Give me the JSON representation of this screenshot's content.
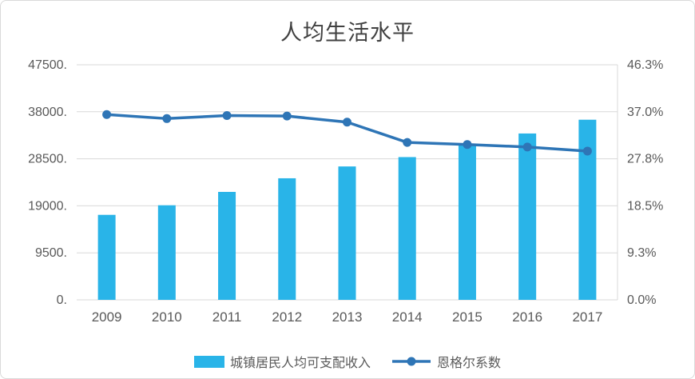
{
  "chart_data": {
    "type": "bar",
    "subtype": "bar+line-combo",
    "title": "人均生活水平",
    "categories": [
      "2009",
      "2010",
      "2011",
      "2012",
      "2013",
      "2014",
      "2015",
      "2016",
      "2017"
    ],
    "series": [
      {
        "name": "城镇居民人均可支配收入",
        "type": "bar",
        "axis": "left",
        "color": "#29b4e8",
        "values": [
          17175,
          19109,
          21810,
          24565,
          26955,
          28844,
          31195,
          33616,
          36396
        ]
      },
      {
        "name": "恩格尔系数",
        "type": "line",
        "axis": "right",
        "color": "#2e75b6",
        "values": [
          36.5,
          35.7,
          36.3,
          36.2,
          35.0,
          31.0,
          30.6,
          30.1,
          29.3
        ]
      }
    ],
    "left_axis": {
      "max": 47500,
      "ticks": [
        0,
        9500,
        19000,
        28500,
        38000,
        47500
      ],
      "labels": [
        "0.",
        "9500.",
        "19000.",
        "28500.",
        "38000.",
        "47500."
      ]
    },
    "right_axis": {
      "max": 46.3,
      "ticks": [
        0,
        9.3,
        18.5,
        27.8,
        37.0,
        46.3
      ],
      "labels": [
        "0.0%",
        "9.3%",
        "18.5%",
        "27.8%",
        "37.0%",
        "46.3%"
      ]
    },
    "grid": true,
    "legend_position": "bottom",
    "colors": {
      "gridline": "#d9d9d9",
      "axis_text": "#595959",
      "title_text": "#404040",
      "border": "#d9d9d9"
    }
  }
}
